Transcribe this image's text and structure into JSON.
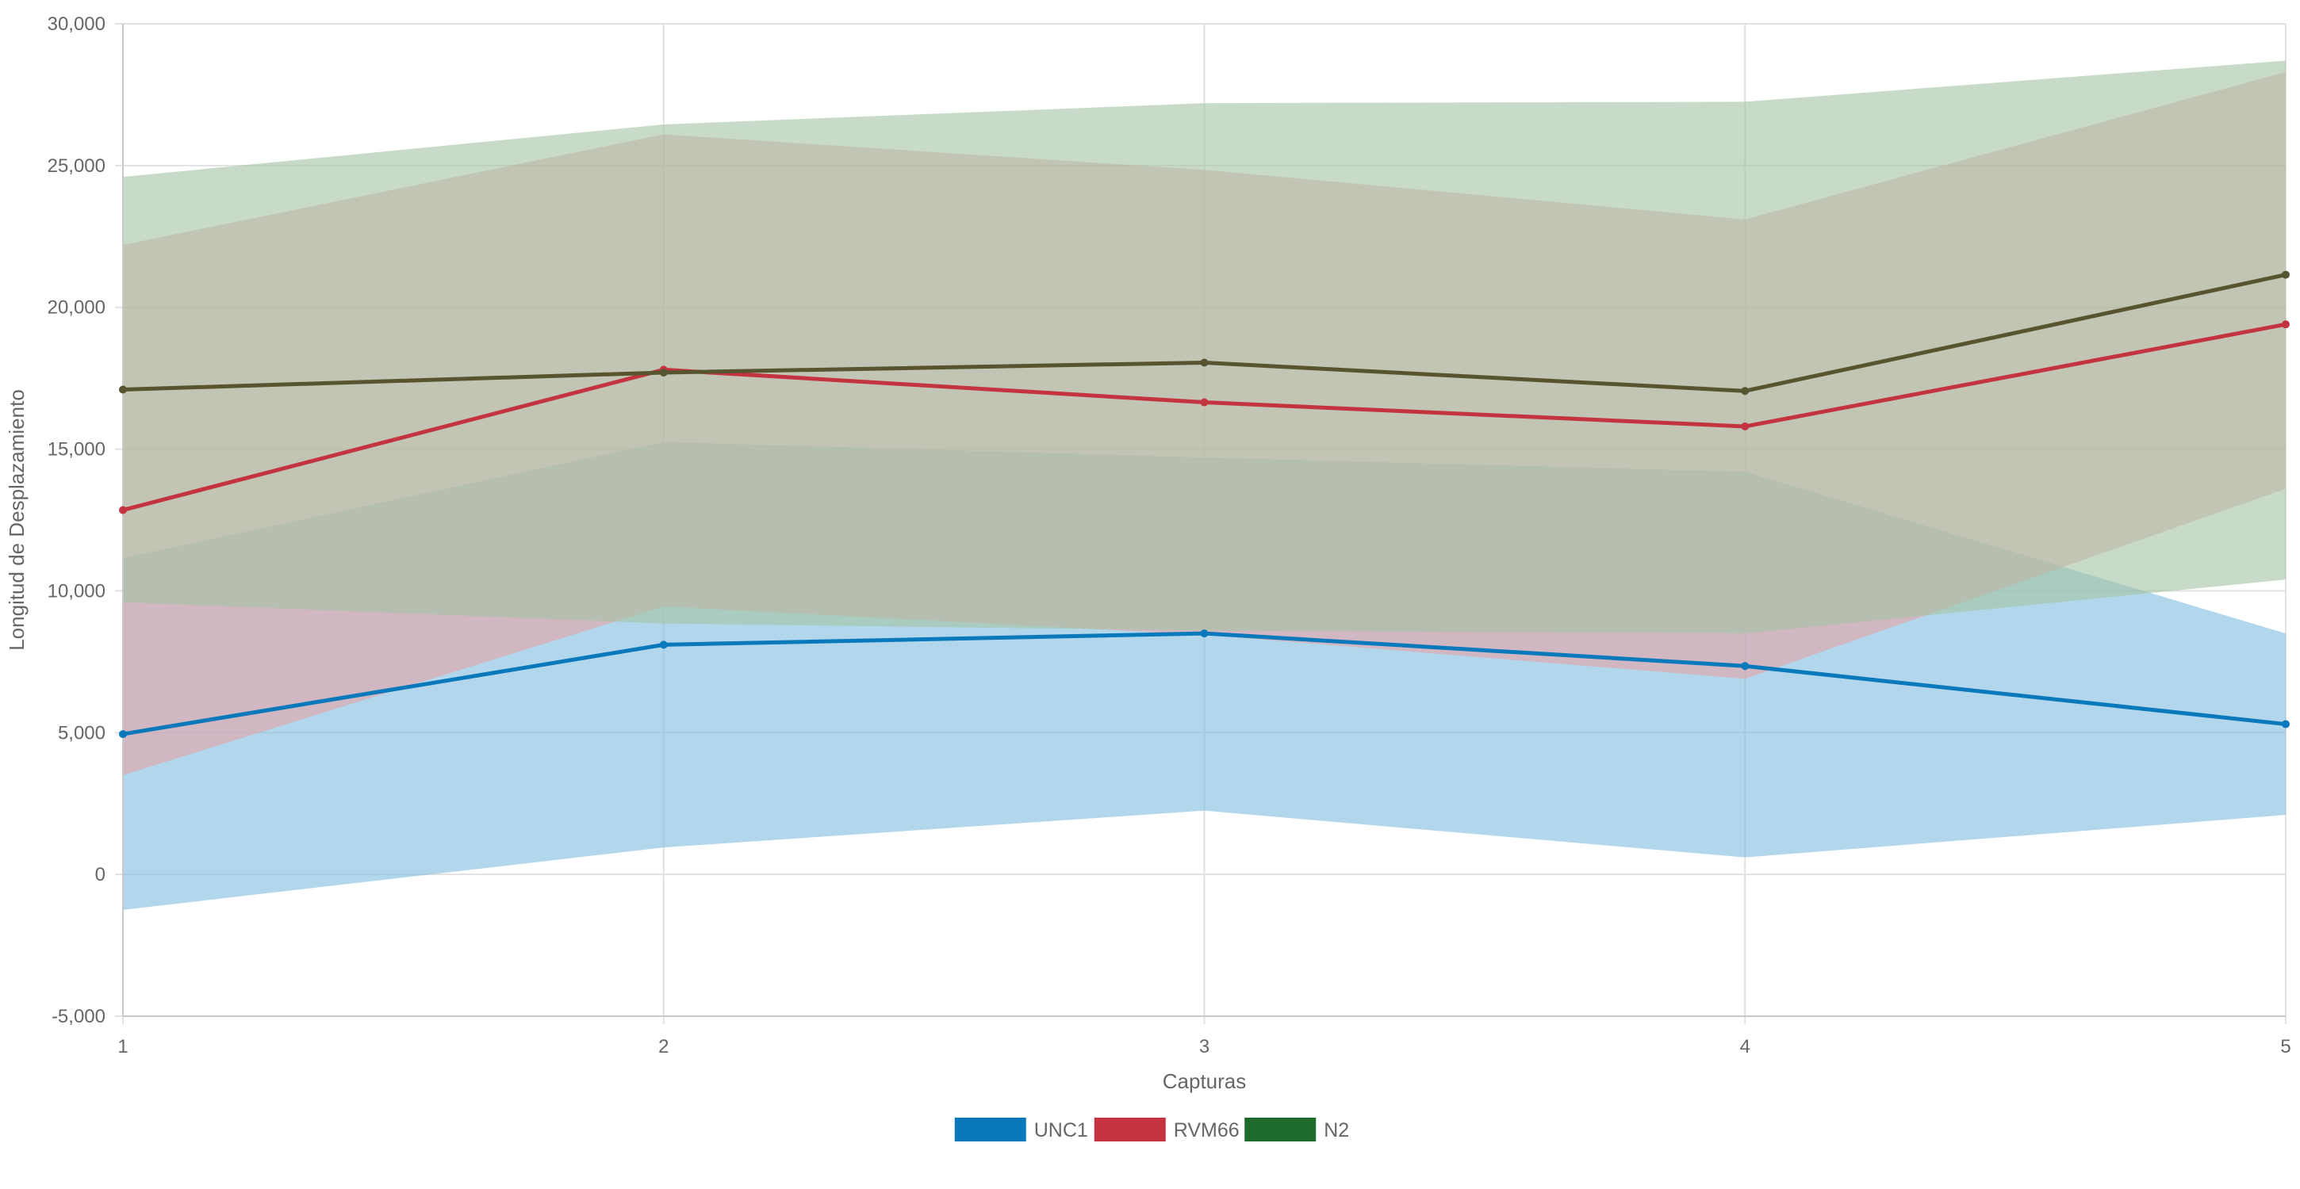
{
  "chart_data": {
    "type": "line",
    "xlabel": "Capturas",
    "ylabel": "Longitud de Desplazamiento",
    "x": [
      1,
      2,
      3,
      4,
      5
    ],
    "ylim": [
      -5000,
      30000
    ],
    "yticks": [
      -5000,
      0,
      5000,
      10000,
      15000,
      20000,
      25000,
      30000
    ],
    "ytick_labels": [
      "-5,000",
      "0",
      "5,000",
      "10,000",
      "15,000",
      "20,000",
      "25,000",
      "30,000"
    ],
    "grid": true,
    "legend_position": "bottom",
    "series": [
      {
        "name": "UNC1",
        "color": "#0a79bb",
        "band_color": "#7fbde0",
        "values": [
          4950,
          8100,
          8500,
          7350,
          5300
        ],
        "upper": [
          11150,
          15250,
          14700,
          14200,
          8500
        ],
        "lower": [
          -1250,
          950,
          2250,
          600,
          2100
        ]
      },
      {
        "name": "RVM66",
        "color": "#c33440",
        "band_color": "#e6a2a7",
        "values": [
          12850,
          17800,
          16650,
          15800,
          19400
        ],
        "upper": [
          22200,
          26100,
          24850,
          23100,
          28300
        ],
        "lower": [
          3500,
          9450,
          8450,
          6900,
          13600
        ]
      },
      {
        "name": "N2",
        "color": "#565530",
        "legend_color": "#1e6a2a",
        "band_color": "#a3c3a4",
        "values": [
          17100,
          17700,
          18050,
          17050,
          21150
        ],
        "upper": [
          24600,
          26450,
          27200,
          27250,
          28700
        ],
        "lower": [
          9600,
          8850,
          8600,
          8500,
          10400
        ]
      }
    ]
  }
}
